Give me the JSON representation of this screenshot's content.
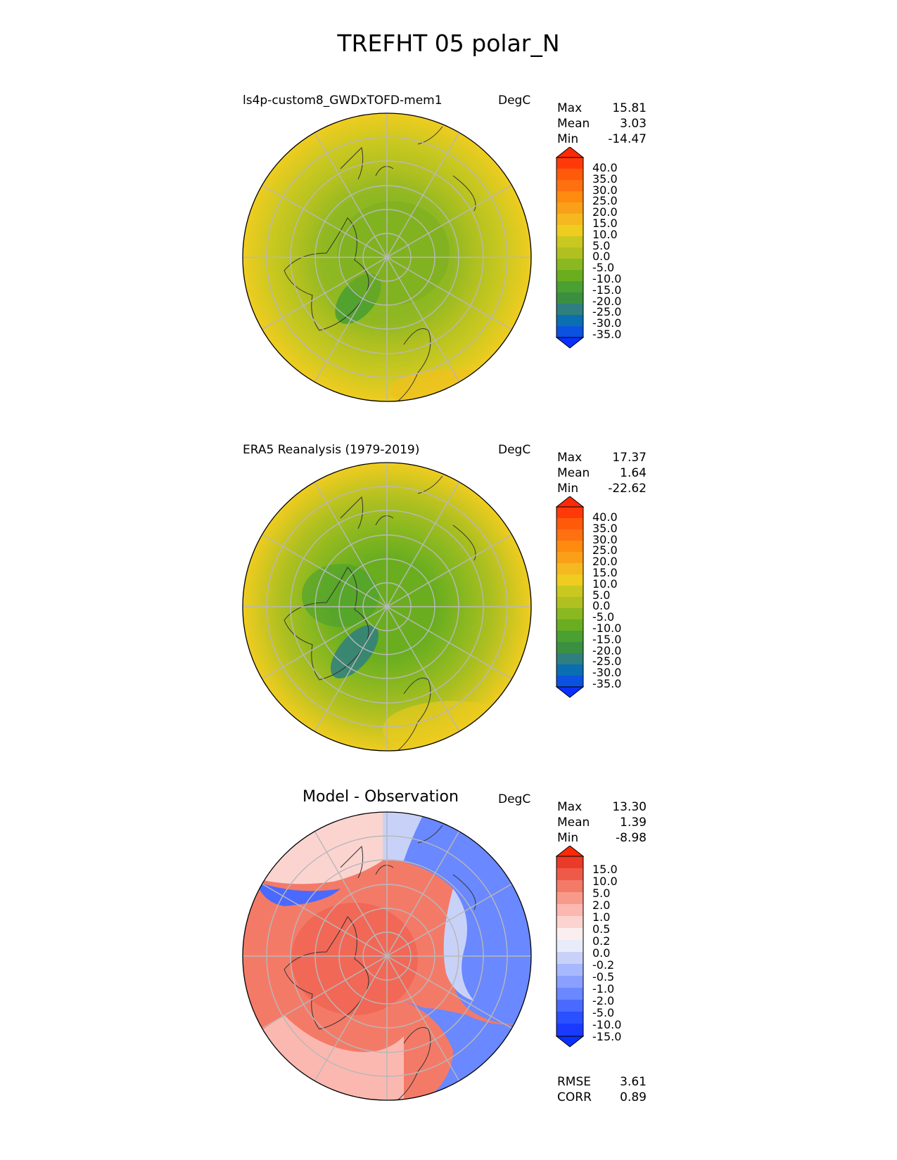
{
  "title": "TREFHT 05 polar_N",
  "panels": [
    {
      "name": "test",
      "title": "ls4p-custom8_GWDxTOFD-mem1",
      "units": "DegC",
      "stats": {
        "max_label": "Max",
        "max": "15.81",
        "mean_label": "Mean",
        "mean": "3.03",
        "min_label": "Min",
        "min": "-14.47"
      },
      "colorbar_ticks": [
        "40.0",
        "35.0",
        "30.0",
        "25.0",
        "20.0",
        "15.0",
        "10.0",
        "5.0",
        "0.0",
        "-5.0",
        "-10.0",
        "-15.0",
        "-20.0",
        "-25.0",
        "-30.0",
        "-35.0"
      ]
    },
    {
      "name": "reference",
      "title": "ERA5 Reanalysis (1979-2019)",
      "units": "DegC",
      "stats": {
        "max_label": "Max",
        "max": "17.37",
        "mean_label": "Mean",
        "mean": "1.64",
        "min_label": "Min",
        "min": "-22.62"
      },
      "colorbar_ticks": [
        "40.0",
        "35.0",
        "30.0",
        "25.0",
        "20.0",
        "15.0",
        "10.0",
        "5.0",
        "0.0",
        "-5.0",
        "-10.0",
        "-15.0",
        "-20.0",
        "-25.0",
        "-30.0",
        "-35.0"
      ]
    },
    {
      "name": "difference",
      "title": "Model - Observation",
      "units": "DegC",
      "stats": {
        "max_label": "Max",
        "max": "13.30",
        "mean_label": "Mean",
        "mean": "1.39",
        "min_label": "Min",
        "min": "-8.98"
      },
      "colorbar_ticks": [
        "15.0",
        "10.0",
        "5.0",
        "2.0",
        "1.0",
        "0.5",
        "0.2",
        "0.0",
        "-0.2",
        "-0.5",
        "-1.0",
        "-2.0",
        "-5.0",
        "-10.0",
        "-15.0"
      ]
    }
  ],
  "metrics": {
    "rmse_label": "RMSE",
    "rmse": "3.61",
    "corr_label": "CORR",
    "corr": "0.89"
  },
  "colors": {
    "temp_scale": [
      "#0a30ff",
      "#0c52e0",
      "#0a6fb0",
      "#2f7f80",
      "#3a9040",
      "#4aa030",
      "#6aae20",
      "#8ab820",
      "#b0c020",
      "#c9c820",
      "#efcc20",
      "#f5b820",
      "#f59e10",
      "#f58010",
      "#f56010",
      "#f54010",
      "#ff2a05"
    ],
    "diff_scale": [
      "#0a30ff",
      "#2a50ff",
      "#4a6aff",
      "#6a88ff",
      "#8aa0ff",
      "#a8b8ff",
      "#c8d2f8",
      "#e8ecfa",
      "#fbeeee",
      "#fbd4d0",
      "#fbb8b0",
      "#f89a8a",
      "#f47a68",
      "#ef5a48",
      "#ea3a28",
      "#ff2a05"
    ]
  }
}
